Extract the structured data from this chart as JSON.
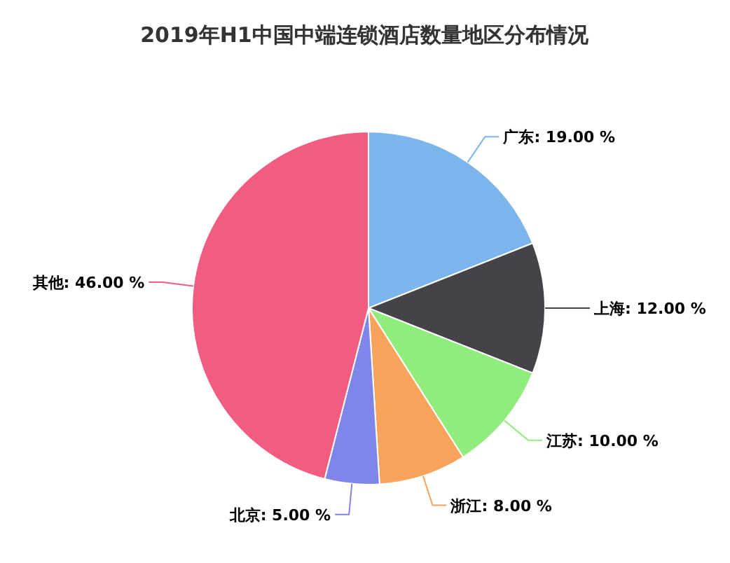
{
  "chart_data": {
    "type": "pie",
    "title": "2019年H1中国中端连锁酒店数量地区分布情况",
    "categories": [
      "广东",
      "上海",
      "江苏",
      "浙江",
      "北京",
      "其他"
    ],
    "values": [
      19,
      12,
      10,
      8,
      5,
      46
    ],
    "value_labels": [
      "19.00 %",
      "12.00 %",
      "10.00 %",
      "8.00 %",
      "5.00 %",
      "46.00 %"
    ],
    "colors": [
      "#7cb5ec",
      "#434348",
      "#90ed7d",
      "#f7a35c",
      "#8085e9",
      "#f15c80"
    ]
  }
}
